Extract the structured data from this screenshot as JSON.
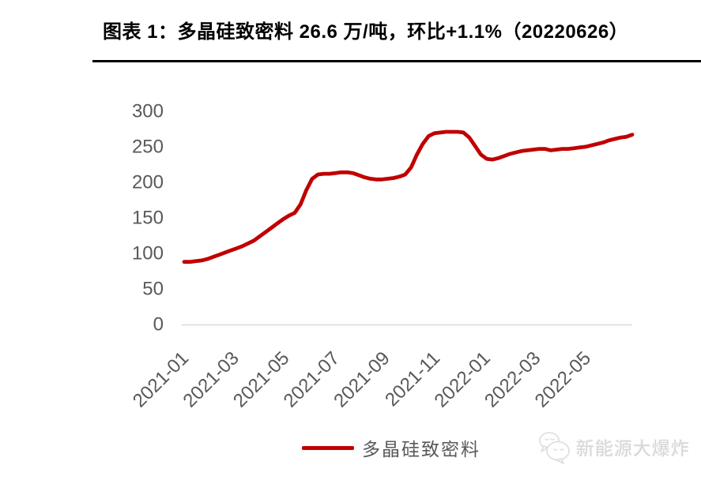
{
  "header": {
    "title": "图表 1：多晶硅致密料 26.6 万/吨，环比+1.1%（20220626）"
  },
  "legend": {
    "label": "多晶硅致密料"
  },
  "watermark": {
    "text": "新能源大爆炸",
    "icon": "chat-bubbles-icon"
  },
  "colors": {
    "series_line": "#c00000",
    "axis_text": "#595959",
    "axis_line": "#d9d9d9",
    "title_text": "#000000",
    "title_rule": "#000000",
    "watermark_text": "#d6d6d6"
  },
  "chart_data": {
    "type": "line",
    "title": "多晶硅致密料 26.6 万/吨，环比+1.1%（20220626）",
    "x_unit": "weekly price points, 2021-01 through 2022-06 (20220626)",
    "x_tick_labels": [
      "2021-01",
      "2021-03",
      "2021-05",
      "2021-07",
      "2021-09",
      "2021-11",
      "2022-01",
      "2022-03",
      "2022-05"
    ],
    "y_ticks": [
      0,
      50,
      100,
      150,
      200,
      250,
      300
    ],
    "ylim": [
      0,
      300
    ],
    "grid": false,
    "legend_position": "bottom",
    "latest_value": 26.6,
    "latest_value_unit": "万/吨",
    "wow_change_pct": 1.1,
    "series": [
      {
        "name": "多晶硅致密料",
        "color": "#c00000",
        "values": [
          87,
          87,
          88,
          89,
          91,
          94,
          97,
          100,
          103,
          106,
          109,
          113,
          117,
          123,
          129,
          135,
          141,
          147,
          152,
          156,
          168,
          188,
          204,
          210,
          211,
          211,
          212,
          213,
          213,
          212,
          209,
          206,
          204,
          203,
          203,
          204,
          205,
          207,
          210,
          220,
          238,
          253,
          264,
          268,
          269,
          270,
          270,
          270,
          269,
          262,
          250,
          238,
          232,
          231,
          233,
          236,
          239,
          241,
          243,
          244,
          245,
          246,
          246,
          244,
          245,
          246,
          246,
          247,
          248,
          249,
          251,
          253,
          255,
          258,
          260,
          262,
          263,
          266
        ]
      }
    ]
  }
}
